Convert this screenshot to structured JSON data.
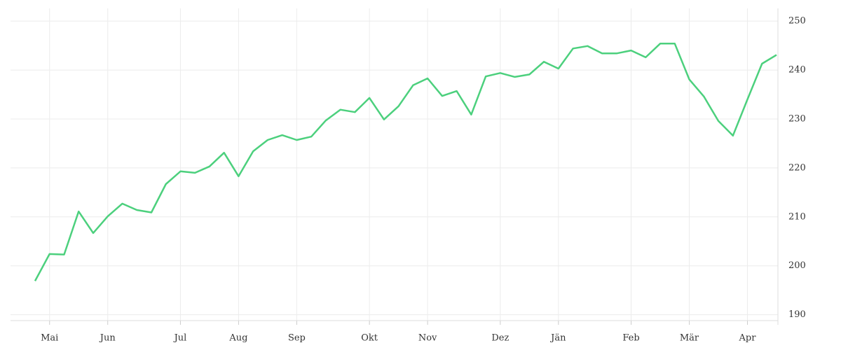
{
  "chart_data": {
    "type": "line",
    "categories": [
      null,
      "Mai",
      null,
      null,
      null,
      "Jun",
      null,
      null,
      null,
      null,
      "Jul",
      null,
      null,
      null,
      "Aug",
      null,
      null,
      null,
      "Sep",
      null,
      null,
      null,
      null,
      "Okt",
      null,
      null,
      null,
      "Nov",
      null,
      null,
      null,
      null,
      "Dez",
      null,
      null,
      null,
      "Jän",
      null,
      null,
      null,
      null,
      "Feb",
      null,
      null,
      null,
      "Mär",
      null,
      null,
      null,
      "Apr",
      null,
      null
    ],
    "values": [
      196.9,
      202.4,
      202.3,
      211.1,
      206.7,
      210.1,
      212.7,
      211.4,
      210.9,
      216.7,
      219.3,
      219.0,
      220.3,
      223.1,
      218.3,
      223.4,
      225.7,
      226.7,
      225.7,
      226.4,
      229.7,
      231.9,
      231.4,
      234.3,
      229.9,
      232.6,
      236.9,
      238.3,
      234.7,
      235.7,
      230.9,
      238.7,
      239.4,
      238.6,
      239.1,
      241.7,
      240.3,
      244.4,
      244.9,
      243.4,
      243.4,
      244.0,
      242.6,
      245.4,
      245.4,
      238.1,
      234.6,
      229.6,
      226.6,
      234.0,
      241.3,
      243.1
    ],
    "color": "#4cd07d",
    "ylim": [
      188.8,
      252.6
    ],
    "yticks": [
      190,
      200,
      210,
      220,
      230,
      240,
      250
    ],
    "grid": true
  }
}
